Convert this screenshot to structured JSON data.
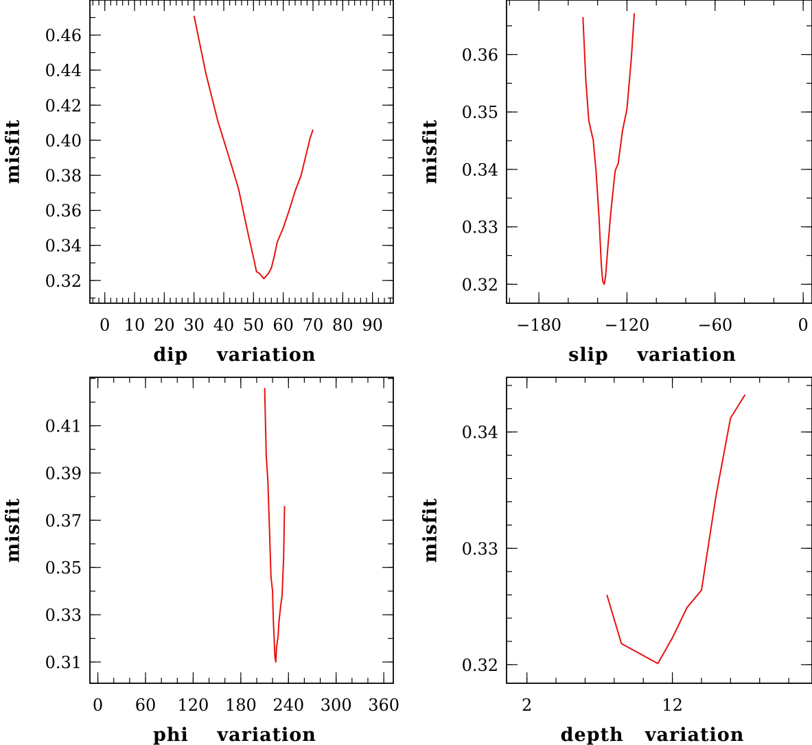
{
  "chart_data": [
    {
      "id": "dip",
      "type": "line",
      "xlabel": "dip    variation",
      "ylabel": "misfit",
      "xlim": [
        -5,
        97
      ],
      "ylim": [
        0.307,
        0.48
      ],
      "x_ticks": [
        "0",
        "10",
        "20",
        "30",
        "40",
        "50",
        "60",
        "70",
        "80",
        "90"
      ],
      "x_tick_values": [
        0,
        10,
        20,
        30,
        40,
        50,
        60,
        70,
        80,
        90
      ],
      "y_ticks": [
        "0.32",
        "0.34",
        "0.36",
        "0.38",
        "0.40",
        "0.42",
        "0.44",
        "0.46"
      ],
      "y_tick_values": [
        0.32,
        0.34,
        0.36,
        0.38,
        0.4,
        0.42,
        0.44,
        0.46
      ],
      "x_minor_step": 2,
      "y_minor_step": 0.01,
      "series": [
        {
          "color": "#e8100c",
          "points": [
            [
              30,
              0.471
            ],
            [
              34,
              0.438
            ],
            [
              38,
              0.411
            ],
            [
              42,
              0.389
            ],
            [
              45,
              0.372
            ],
            [
              48,
              0.348
            ],
            [
              50,
              0.333
            ],
            [
              51,
              0.325
            ],
            [
              52,
              0.324
            ],
            [
              53,
              0.322
            ],
            [
              53.5,
              0.321
            ],
            [
              54,
              0.322
            ],
            [
              55,
              0.324
            ],
            [
              56,
              0.327
            ],
            [
              57,
              0.334
            ],
            [
              58,
              0.342
            ],
            [
              60,
              0.35
            ],
            [
              62,
              0.36
            ],
            [
              64,
              0.371
            ],
            [
              66,
              0.38
            ],
            [
              67,
              0.387
            ],
            [
              69,
              0.401
            ],
            [
              70,
              0.406
            ]
          ]
        }
      ]
    },
    {
      "id": "slip",
      "type": "line",
      "xlabel": "slip    variation",
      "ylabel": "misfit",
      "xlim": [
        -202,
        6
      ],
      "ylim": [
        0.3167,
        0.3695
      ],
      "x_ticks": [
        "−180",
        "−120",
        "−60",
        "0"
      ],
      "x_tick_values": [
        -180,
        -120,
        -60,
        0
      ],
      "y_ticks": [
        "0.32",
        "0.33",
        "0.34",
        "0.35",
        "0.36"
      ],
      "y_tick_values": [
        0.32,
        0.33,
        0.34,
        0.35,
        0.36
      ],
      "x_minor_step": 20,
      "y_minor_step": 0.005,
      "series": [
        {
          "color": "#e8100c",
          "points": [
            [
              -150,
              0.3665
            ],
            [
              -148,
              0.3555
            ],
            [
              -146,
              0.3485
            ],
            [
              -144,
              0.3462
            ],
            [
              -143,
              0.3452
            ],
            [
              -141,
              0.3395
            ],
            [
              -139,
              0.3315
            ],
            [
              -137.5,
              0.3235
            ],
            [
              -136.5,
              0.3205
            ],
            [
              -135.5,
              0.32
            ],
            [
              -134.5,
              0.3215
            ],
            [
              -133,
              0.3265
            ],
            [
              -131,
              0.3325
            ],
            [
              -129,
              0.3375
            ],
            [
              -128,
              0.3398
            ],
            [
              -126,
              0.341
            ],
            [
              -123,
              0.3468
            ],
            [
              -120,
              0.3505
            ],
            [
              -117,
              0.3595
            ],
            [
              -115,
              0.3672
            ]
          ]
        }
      ]
    },
    {
      "id": "phi",
      "type": "line",
      "xlabel": "phi    variation",
      "ylabel": "misfit",
      "xlim": [
        -10,
        372
      ],
      "ylim": [
        0.301,
        0.4305
      ],
      "x_ticks": [
        "0",
        "60",
        "120",
        "180",
        "240",
        "300",
        "360"
      ],
      "x_tick_values": [
        0,
        60,
        120,
        180,
        240,
        300,
        360
      ],
      "y_ticks": [
        "0.31",
        "0.33",
        "0.35",
        "0.37",
        "0.39",
        "0.41"
      ],
      "y_tick_values": [
        0.31,
        0.33,
        0.35,
        0.37,
        0.39,
        0.41
      ],
      "x_minor_step": 20,
      "y_minor_step": 0.01,
      "series": [
        {
          "color": "#e8100c",
          "points": [
            [
              210,
              0.426
            ],
            [
              212,
              0.397
            ],
            [
              214,
              0.387
            ],
            [
              216,
              0.367
            ],
            [
              218,
              0.346
            ],
            [
              220,
              0.34
            ],
            [
              221,
              0.327
            ],
            [
              222,
              0.32
            ],
            [
              223,
              0.312
            ],
            [
              224,
              0.31
            ],
            [
              225,
              0.316
            ],
            [
              227,
              0.321
            ],
            [
              228,
              0.327
            ],
            [
              229,
              0.33
            ],
            [
              230,
              0.333
            ],
            [
              231,
              0.336
            ],
            [
              232,
              0.338
            ],
            [
              234,
              0.355
            ],
            [
              235,
              0.376
            ]
          ]
        }
      ]
    },
    {
      "id": "depth",
      "type": "line",
      "xlabel": "depth   variation",
      "ylabel": "misfit",
      "xlim": [
        0.6,
        21.6
      ],
      "ylim": [
        0.3184,
        0.3447
      ],
      "x_ticks": [
        "2",
        "12"
      ],
      "x_tick_values": [
        2,
        12
      ],
      "y_ticks": [
        "0.32",
        "0.33",
        "0.34"
      ],
      "y_tick_values": [
        0.32,
        0.33,
        0.34
      ],
      "x_minor_step": 2,
      "y_minor_step": 0.002,
      "series": [
        {
          "color": "#e8100c",
          "points": [
            [
              7.5,
              0.326
            ],
            [
              8.5,
              0.3218
            ],
            [
              11,
              0.3201
            ],
            [
              12,
              0.3223
            ],
            [
              13,
              0.3249
            ],
            [
              14,
              0.3264
            ],
            [
              15,
              0.3345
            ],
            [
              16,
              0.3412
            ],
            [
              17,
              0.3432
            ]
          ]
        }
      ]
    }
  ]
}
